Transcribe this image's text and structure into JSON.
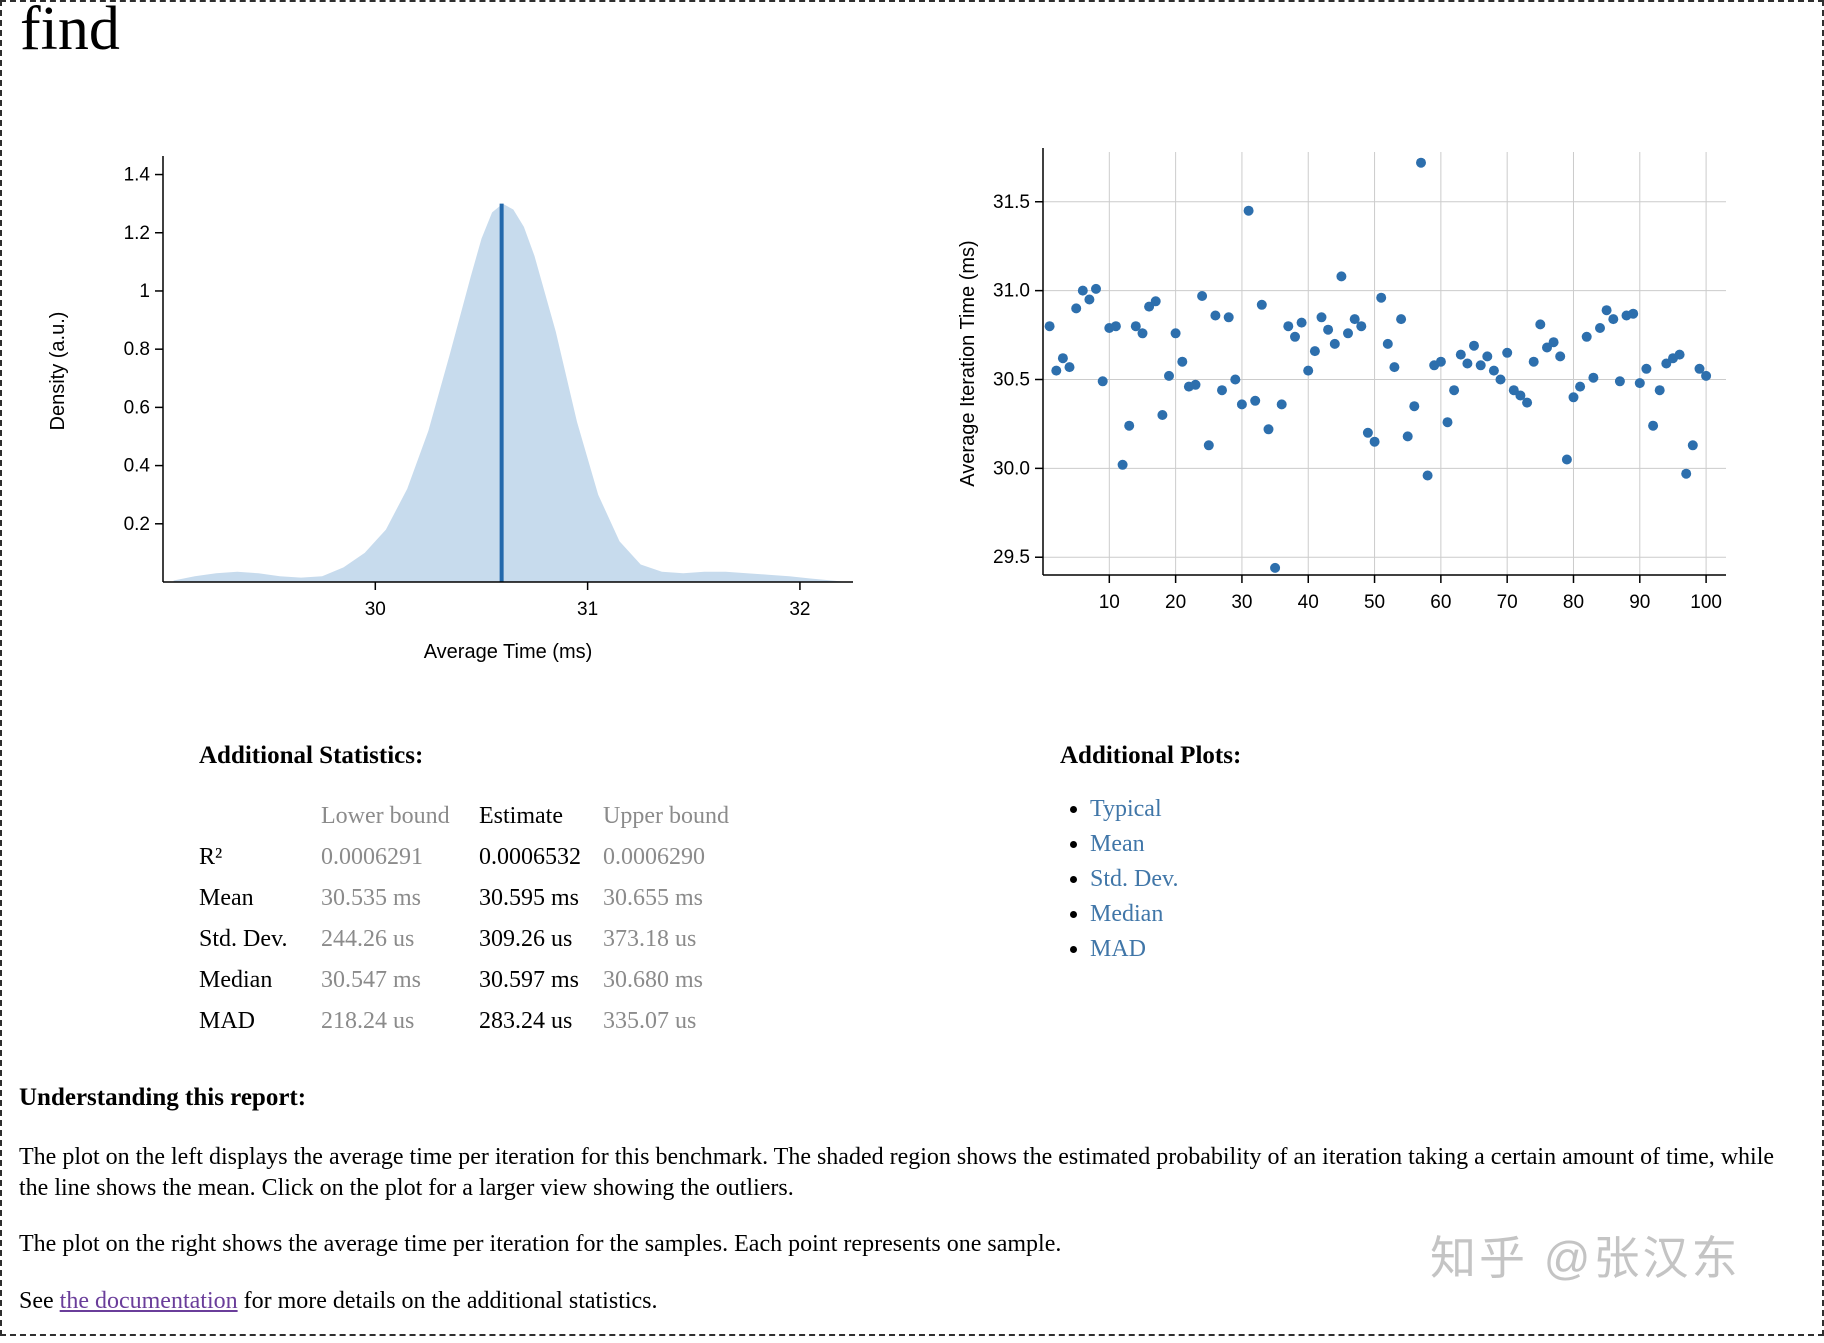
{
  "page": {
    "title": "find",
    "watermark": "知乎 @张汉东"
  },
  "colors": {
    "density_fill": "#c7dbed",
    "mean_line": "#2369ac",
    "point": "#2d6fad",
    "grid": "#cccccc",
    "axis": "#000000",
    "muted_text": "#8b8b8b",
    "link": "#4076a8",
    "link_visited": "#6a3d9a"
  },
  "stats": {
    "heading": "Additional Statistics:",
    "columns": [
      "Lower bound",
      "Estimate",
      "Upper bound"
    ],
    "rows": [
      {
        "label": "R²",
        "lower": "0.0006291",
        "estimate": "0.0006532",
        "upper": "0.0006290"
      },
      {
        "label": "Mean",
        "lower": "30.535 ms",
        "estimate": "30.595 ms",
        "upper": "30.655 ms"
      },
      {
        "label": "Std. Dev.",
        "lower": "244.26 us",
        "estimate": "309.26 us",
        "upper": "373.18 us"
      },
      {
        "label": "Median",
        "lower": "30.547 ms",
        "estimate": "30.597 ms",
        "upper": "30.680 ms"
      },
      {
        "label": "MAD",
        "lower": "218.24 us",
        "estimate": "283.24 us",
        "upper": "335.07 us"
      }
    ]
  },
  "additional_plots": {
    "heading": "Additional Plots:",
    "links": [
      "Typical",
      "Mean",
      "Std. Dev.",
      "Median",
      "MAD"
    ]
  },
  "explanation": {
    "heading": "Understanding this report:",
    "p1": "The plot on the left displays the average time per iteration for this benchmark. The shaded region shows the estimated probability of an iteration taking a certain amount of time, while the line shows the mean. Click on the plot for a larger view showing the outliers.",
    "p2": "The plot on the right shows the average time per iteration for the samples. Each point represents one sample.",
    "p3_prefix": "See ",
    "p3_link": "the documentation",
    "p3_suffix": " for more details on the additional statistics."
  },
  "chart_data": [
    {
      "type": "area",
      "title": "",
      "xlabel": "Average Time (ms)",
      "ylabel": "Density (a.u.)",
      "xlim": [
        29.0,
        32.25
      ],
      "ylim": [
        0,
        1.45
      ],
      "xticks": [
        30,
        31,
        32
      ],
      "xtick_labels": [
        "30",
        "31",
        "32"
      ],
      "yticks": [
        0.2,
        0.4,
        0.6,
        0.8,
        1.0,
        1.2,
        1.4
      ],
      "ytick_labels": [
        "0.2",
        "0.4",
        "0.6",
        "0.8",
        "1",
        "1.2",
        "1.4"
      ],
      "grid": false,
      "legend": "none",
      "mean_line": 30.595,
      "mean_line_height": 1.3,
      "x": [
        29.05,
        29.15,
        29.25,
        29.35,
        29.45,
        29.55,
        29.65,
        29.75,
        29.85,
        29.95,
        30.05,
        30.15,
        30.25,
        30.35,
        30.45,
        30.5,
        30.55,
        30.6,
        30.65,
        30.7,
        30.75,
        30.85,
        30.95,
        31.05,
        31.15,
        31.25,
        31.35,
        31.45,
        31.55,
        31.65,
        31.75,
        31.85,
        31.95,
        32.05,
        32.15,
        32.22
      ],
      "y": [
        0.005,
        0.02,
        0.03,
        0.035,
        0.03,
        0.02,
        0.015,
        0.02,
        0.05,
        0.1,
        0.18,
        0.32,
        0.52,
        0.78,
        1.05,
        1.18,
        1.27,
        1.3,
        1.28,
        1.22,
        1.12,
        0.86,
        0.55,
        0.3,
        0.14,
        0.06,
        0.035,
        0.03,
        0.035,
        0.035,
        0.03,
        0.025,
        0.02,
        0.012,
        0.005,
        0.0
      ]
    },
    {
      "type": "scatter",
      "title": "",
      "xlabel": "",
      "ylabel": "Average Iteration Time (ms)",
      "xlim": [
        0,
        103
      ],
      "ylim": [
        29.4,
        31.78
      ],
      "xticks": [
        10,
        20,
        30,
        40,
        50,
        60,
        70,
        80,
        90,
        100
      ],
      "xtick_labels": [
        "10",
        "20",
        "30",
        "40",
        "50",
        "60",
        "70",
        "80",
        "90",
        "100"
      ],
      "yticks": [
        29.5,
        30.0,
        30.5,
        31.0,
        31.5
      ],
      "ytick_labels": [
        "29.5",
        "30.0",
        "30.5",
        "31.0",
        "31.5"
      ],
      "grid": true,
      "legend": "none",
      "x_is_sample_index": true,
      "y": [
        30.8,
        30.55,
        30.62,
        30.57,
        30.9,
        31.0,
        30.95,
        31.01,
        30.49,
        30.79,
        30.8,
        30.02,
        30.24,
        30.8,
        30.76,
        30.91,
        30.94,
        30.3,
        30.52,
        30.76,
        30.6,
        30.46,
        30.47,
        30.97,
        30.13,
        30.86,
        30.44,
        30.85,
        30.5,
        30.36,
        31.45,
        30.38,
        30.92,
        30.22,
        29.44,
        30.36,
        30.8,
        30.74,
        30.82,
        30.55,
        30.66,
        30.85,
        30.78,
        30.7,
        31.08,
        30.76,
        30.84,
        30.8,
        30.2,
        30.15,
        30.96,
        30.7,
        30.57,
        30.84,
        30.18,
        30.35,
        31.72,
        29.96,
        30.58,
        30.6,
        30.26,
        30.44,
        30.64,
        30.59,
        30.69,
        30.58,
        30.63,
        30.55,
        30.5,
        30.65,
        30.44,
        30.41,
        30.37,
        30.6,
        30.81,
        30.68,
        30.71,
        30.63,
        30.05,
        30.4,
        30.46,
        30.74,
        30.51,
        30.79,
        30.89,
        30.84,
        30.49,
        30.86,
        30.87,
        30.48,
        30.56,
        30.24,
        30.44,
        30.59,
        30.62,
        30.64,
        29.97,
        30.13,
        30.56,
        30.52
      ]
    }
  ]
}
